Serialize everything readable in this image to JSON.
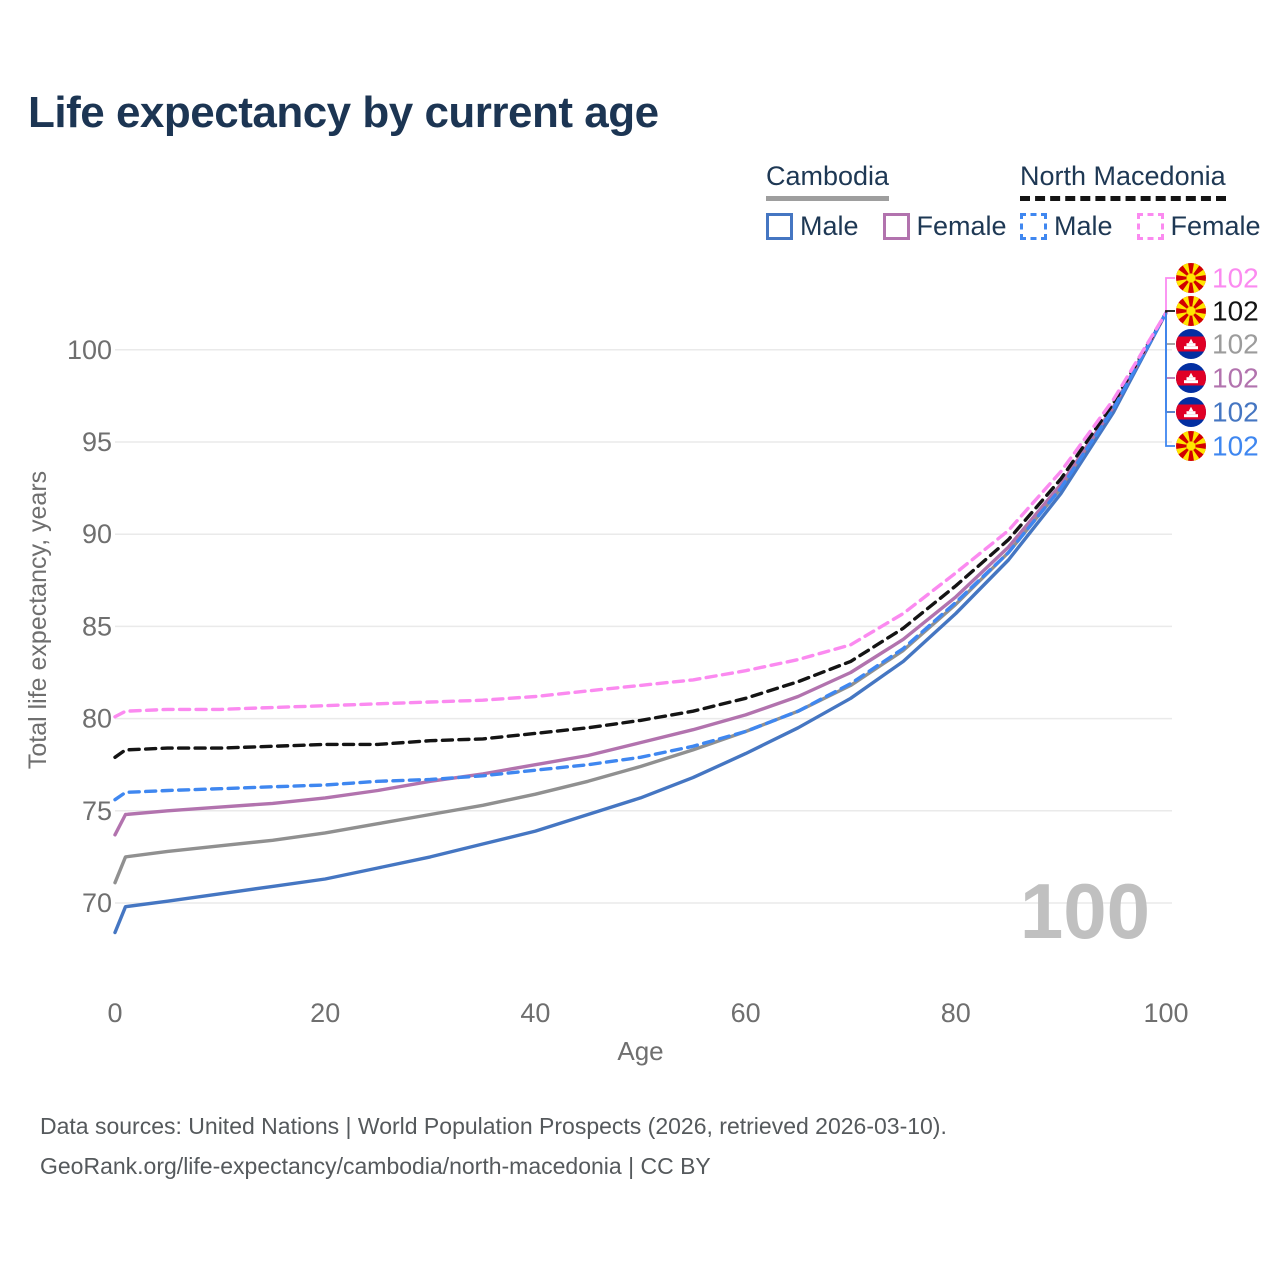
{
  "title": "Life expectancy by current age",
  "legend": {
    "groups": [
      {
        "label": "Cambodia",
        "line_style": "solid",
        "underline_color": "#9e9e9e",
        "items": [
          {
            "label": "Male",
            "color": "#4576c2",
            "dashed": false
          },
          {
            "label": "Female",
            "color": "#b273ae",
            "dashed": false
          }
        ]
      },
      {
        "label": "North Macedonia",
        "line_style": "dashed",
        "underline_color": "#141414",
        "items": [
          {
            "label": "Male",
            "color": "#3f87f0",
            "dashed": true
          },
          {
            "label": "Female",
            "color": "#fb8af0",
            "dashed": true
          }
        ]
      }
    ]
  },
  "watermark": "100",
  "footer": {
    "line1": "Data sources: United Nations | World Population Prospects (2026, retrieved 2026-03-10).",
    "line2": "GeoRank.org/life-expectancy/cambodia/north-macedonia | CC BY"
  },
  "chart_data": {
    "type": "line",
    "title": "Life expectancy by current age",
    "xlabel": "Age",
    "ylabel": "Total life expectancy, years",
    "xlim": [
      0,
      100
    ],
    "ylim": [
      68,
      103
    ],
    "xticks": [
      0,
      20,
      40,
      60,
      80,
      100
    ],
    "yticks": [
      70,
      75,
      80,
      85,
      90,
      95,
      100
    ],
    "grid": "horizontal",
    "legend_position": "top-right",
    "x": [
      0,
      1,
      5,
      10,
      15,
      20,
      25,
      30,
      35,
      40,
      45,
      50,
      55,
      60,
      65,
      70,
      75,
      80,
      85,
      90,
      95,
      100
    ],
    "series": [
      {
        "key": "cambodia-total",
        "name": "Cambodia",
        "color": "#909090",
        "dashed": false,
        "values": [
          71.1,
          72.5,
          72.8,
          73.1,
          73.4,
          73.8,
          74.3,
          74.8,
          75.3,
          75.9,
          76.6,
          77.4,
          78.3,
          79.3,
          80.4,
          81.8,
          83.7,
          86.2,
          89.0,
          92.5,
          96.8,
          102
        ]
      },
      {
        "key": "cambodia-male",
        "name": "Cambodia Male",
        "color": "#4576c2",
        "dashed": false,
        "values": [
          68.4,
          69.8,
          70.1,
          70.5,
          70.9,
          71.3,
          71.9,
          72.5,
          73.2,
          73.9,
          74.8,
          75.7,
          76.8,
          78.1,
          79.5,
          81.1,
          83.1,
          85.7,
          88.6,
          92.2,
          96.6,
          102
        ]
      },
      {
        "key": "cambodia-female",
        "name": "Cambodia Female",
        "color": "#b273ae",
        "dashed": false,
        "values": [
          73.7,
          74.8,
          75.0,
          75.2,
          75.4,
          75.7,
          76.1,
          76.6,
          77.0,
          77.5,
          78.0,
          78.7,
          79.4,
          80.2,
          81.2,
          82.5,
          84.3,
          86.6,
          89.3,
          92.7,
          96.9,
          102
        ]
      },
      {
        "key": "north-macedonia-total",
        "name": "North Macedonia",
        "color": "#141414",
        "dashed": true,
        "values": [
          77.9,
          78.3,
          78.4,
          78.4,
          78.5,
          78.6,
          78.6,
          78.8,
          78.9,
          79.2,
          79.5,
          79.9,
          80.4,
          81.1,
          82.0,
          83.1,
          84.9,
          87.2,
          89.7,
          93.0,
          97.1,
          102
        ]
      },
      {
        "key": "north-macedonia-male",
        "name": "North Macedonia Male",
        "color": "#3f87f0",
        "dashed": true,
        "values": [
          75.6,
          76.0,
          76.1,
          76.2,
          76.3,
          76.4,
          76.6,
          76.7,
          76.9,
          77.2,
          77.5,
          77.9,
          78.5,
          79.3,
          80.4,
          81.9,
          83.8,
          86.3,
          89.0,
          92.5,
          96.8,
          102
        ]
      },
      {
        "key": "north-macedonia-female",
        "name": "North Macedonia Female",
        "color": "#fb8af0",
        "dashed": true,
        "values": [
          80.1,
          80.4,
          80.5,
          80.5,
          80.6,
          80.7,
          80.8,
          80.9,
          81.0,
          81.2,
          81.5,
          81.8,
          82.1,
          82.6,
          83.2,
          84.0,
          85.7,
          87.9,
          90.2,
          93.4,
          97.3,
          102
        ]
      }
    ],
    "end_labels": [
      {
        "text": "102",
        "color": "#fb8af0",
        "flag": "north-macedonia",
        "series": "North Macedonia Female"
      },
      {
        "text": "102",
        "color": "#141414",
        "flag": "north-macedonia",
        "series": "North Macedonia"
      },
      {
        "text": "102",
        "color": "#9c9c9c",
        "flag": "cambodia",
        "series": "Cambodia"
      },
      {
        "text": "102",
        "color": "#b273ae",
        "flag": "cambodia",
        "series": "Cambodia Female"
      },
      {
        "text": "102",
        "color": "#4576c2",
        "flag": "cambodia",
        "series": "Cambodia Male"
      },
      {
        "text": "102",
        "color": "#3f87f0",
        "flag": "north-macedonia",
        "series": "North Macedonia Male"
      }
    ]
  }
}
